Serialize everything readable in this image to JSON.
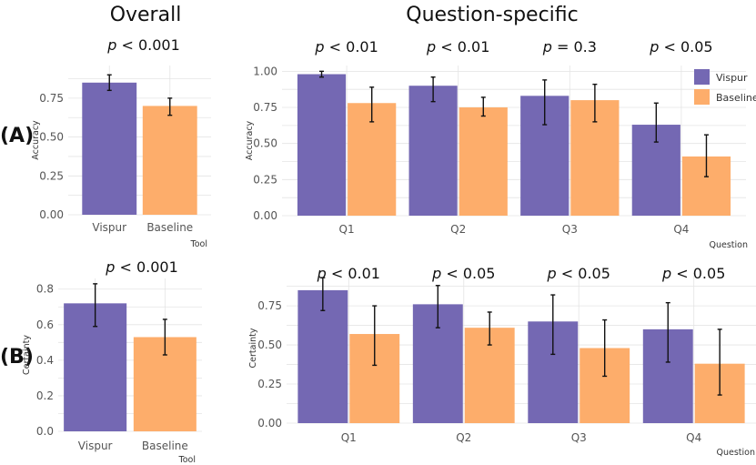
{
  "figure": {
    "col_titles": [
      "Overall",
      "Question-specific"
    ],
    "row_labels": [
      "(A)",
      "(B)"
    ]
  },
  "chart_data": [
    {
      "id": "a_overall",
      "type": "bar",
      "pvalue": "< 0.001",
      "categories": [
        "Vispur",
        "Baseline"
      ],
      "series": [
        {
          "name": "value",
          "values": [
            0.85,
            0.7
          ],
          "err_low": [
            0.8,
            0.64
          ],
          "err_high": [
            0.9,
            0.75
          ]
        }
      ],
      "ylabel": "Accuracy",
      "xlabel": "Tool",
      "yticks": [
        0.0,
        0.25,
        0.5,
        0.75
      ],
      "ytick_labels": [
        "0.00",
        "0.25",
        "0.50",
        "0.75"
      ],
      "ylim": [
        0,
        0.96
      ]
    },
    {
      "id": "a_question",
      "type": "bar",
      "pvalues": [
        "< 0.01",
        "< 0.01",
        "= 0.3",
        "< 0.05"
      ],
      "categories": [
        "Q1",
        "Q2",
        "Q3",
        "Q4"
      ],
      "series": [
        {
          "name": "Vispur",
          "values": [
            0.98,
            0.9,
            0.83,
            0.63
          ],
          "err_low": [
            0.96,
            0.79,
            0.63,
            0.51
          ],
          "err_high": [
            1.0,
            0.96,
            0.94,
            0.78
          ]
        },
        {
          "name": "Baseline",
          "values": [
            0.78,
            0.75,
            0.8,
            0.41
          ],
          "err_low": [
            0.65,
            0.69,
            0.65,
            0.27
          ],
          "err_high": [
            0.89,
            0.82,
            0.91,
            0.56
          ]
        }
      ],
      "ylabel": "Accuracy",
      "xlabel": "Question",
      "yticks": [
        0.0,
        0.25,
        0.5,
        0.75,
        1.0
      ],
      "ytick_labels": [
        "0.00",
        "0.25",
        "0.50",
        "0.75",
        "1.00"
      ],
      "ylim": [
        0,
        1.04
      ],
      "legend": [
        "Vispur",
        "Baseline"
      ]
    },
    {
      "id": "b_overall",
      "type": "bar",
      "pvalue": "< 0.001",
      "categories": [
        "Vispur",
        "Baseline"
      ],
      "series": [
        {
          "name": "value",
          "values": [
            0.72,
            0.53
          ],
          "err_low": [
            0.59,
            0.43
          ],
          "err_high": [
            0.83,
            0.63
          ]
        }
      ],
      "ylabel": "Certainty",
      "xlabel": "Tool",
      "yticks": [
        0.0,
        0.2,
        0.4,
        0.6,
        0.8
      ],
      "ytick_labels": [
        "0.0",
        "0.2",
        "0.4",
        "0.6",
        "0.8"
      ],
      "ylim": [
        0,
        0.86
      ]
    },
    {
      "id": "b_question",
      "type": "bar",
      "pvalues": [
        "< 0.01",
        "< 0.05",
        "< 0.05",
        "< 0.05"
      ],
      "categories": [
        "Q1",
        "Q2",
        "Q3",
        "Q4"
      ],
      "series": [
        {
          "name": "Vispur",
          "values": [
            0.85,
            0.76,
            0.65,
            0.6
          ],
          "err_low": [
            0.72,
            0.61,
            0.44,
            0.39
          ],
          "err_high": [
            0.93,
            0.88,
            0.82,
            0.77
          ]
        },
        {
          "name": "Baseline",
          "values": [
            0.57,
            0.61,
            0.48,
            0.38
          ],
          "err_low": [
            0.37,
            0.5,
            0.3,
            0.18
          ],
          "err_high": [
            0.75,
            0.71,
            0.66,
            0.6
          ]
        }
      ],
      "ylabel": "Certainty",
      "xlabel": "Question",
      "yticks": [
        0.0,
        0.25,
        0.5,
        0.75
      ],
      "ytick_labels": [
        "0.00",
        "0.25",
        "0.50",
        "0.75"
      ],
      "ylim": [
        0,
        0.96
      ]
    }
  ],
  "colors": {
    "vispur": "#7468b3",
    "baseline": "#fdad6b",
    "grid": "#e4e4e4",
    "axis_text": "#555555",
    "errorbar": "#111111"
  }
}
